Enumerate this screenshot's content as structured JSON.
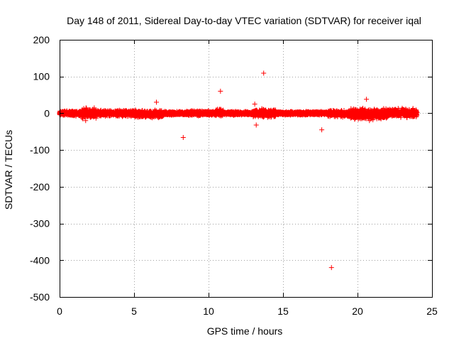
{
  "chart_data": {
    "type": "scatter",
    "title": "Day 148 of 2011, Sidereal Day-to-day VTEC variation (SDTVAR) for receiver iqal",
    "xlabel": "GPS time / hours",
    "ylabel": "SDTVAR / TECUs",
    "xlim": [
      0,
      25
    ],
    "ylim": [
      -500,
      200
    ],
    "xticks": [
      0,
      5,
      10,
      15,
      20,
      25
    ],
    "yticks": [
      -500,
      -400,
      -300,
      -200,
      -100,
      0,
      100,
      200
    ],
    "grid": true,
    "marker": "+",
    "colors": {
      "series": "#ff0000",
      "grid": "#a0a0a0",
      "frame": "#000000"
    },
    "series": [
      {
        "name": "SDTVAR",
        "note": "dense band of points between about -20 and +20 TECU spanning 0-24 h, plus outliers",
        "band": [
          {
            "x0": 0.0,
            "x1": 1.5,
            "lo": -8,
            "hi": 8
          },
          {
            "x0": 1.5,
            "x1": 2.5,
            "lo": -18,
            "hi": 18
          },
          {
            "x0": 2.5,
            "x1": 5.0,
            "lo": -10,
            "hi": 10
          },
          {
            "x0": 5.0,
            "x1": 7.0,
            "lo": -14,
            "hi": 10
          },
          {
            "x0": 7.0,
            "x1": 8.5,
            "lo": -6,
            "hi": 6
          },
          {
            "x0": 8.5,
            "x1": 10.5,
            "lo": -8,
            "hi": 8
          },
          {
            "x0": 10.5,
            "x1": 11.0,
            "lo": -10,
            "hi": 14
          },
          {
            "x0": 11.0,
            "x1": 13.0,
            "lo": -6,
            "hi": 6
          },
          {
            "x0": 13.0,
            "x1": 14.5,
            "lo": -14,
            "hi": 14
          },
          {
            "x0": 14.5,
            "x1": 17.0,
            "lo": -6,
            "hi": 6
          },
          {
            "x0": 17.0,
            "x1": 18.0,
            "lo": -6,
            "hi": 6
          },
          {
            "x0": 18.0,
            "x1": 19.5,
            "lo": -12,
            "hi": 10
          },
          {
            "x0": 19.5,
            "x1": 22.0,
            "lo": -20,
            "hi": 16
          },
          {
            "x0": 22.0,
            "x1": 24.0,
            "lo": -14,
            "hi": 16
          }
        ],
        "outliers": [
          {
            "x": 1.75,
            "y": -20
          },
          {
            "x": 6.5,
            "y": 30
          },
          {
            "x": 8.3,
            "y": -66
          },
          {
            "x": 10.8,
            "y": 60
          },
          {
            "x": 13.1,
            "y": 25
          },
          {
            "x": 13.2,
            "y": -32
          },
          {
            "x": 13.7,
            "y": 109
          },
          {
            "x": 17.6,
            "y": -45
          },
          {
            "x": 18.25,
            "y": -420
          },
          {
            "x": 20.6,
            "y": 38
          },
          {
            "x": 20.8,
            "y": -20
          }
        ]
      }
    ]
  }
}
